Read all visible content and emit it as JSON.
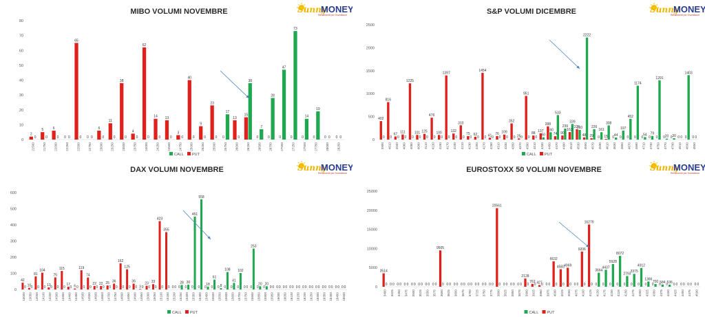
{
  "colors": {
    "call": "#1fa84f",
    "put": "#e0201b",
    "arrow": "#4a7fc1"
  },
  "logo": {
    "sunny": "Sunny",
    "money": "MONEY",
    "tagline": "Rendimenti per l'investitore",
    "icon": "sun-icon"
  },
  "legend": {
    "call": "CALL",
    "put": "PUT"
  },
  "chart_data": [
    {
      "type": "bar",
      "title": "MIBO VOLUMI NOVEMBRE",
      "ylim": [
        0,
        80
      ],
      "yticks": [
        0,
        10,
        20,
        30,
        40,
        50,
        60,
        70,
        80
      ],
      "categories": [
        "21500",
        "21750",
        "22000",
        "22250",
        "22500",
        "22750",
        "23000",
        "23250",
        "23500",
        "23750",
        "24000",
        "24250",
        "24500",
        "24750",
        "25000",
        "25250",
        "25500",
        "25750",
        "26000",
        "26250",
        "26500",
        "26750",
        "27000",
        "27250",
        "27500",
        "27750",
        "28000",
        "28250"
      ],
      "series": [
        {
          "name": "CALL",
          "values": [
            0,
            0,
            0,
            0,
            0,
            0,
            0,
            0,
            0,
            0,
            0,
            0,
            0,
            0,
            0,
            0,
            0,
            17,
            0,
            38,
            7,
            28,
            47,
            73,
            14,
            19,
            0,
            0
          ]
        },
        {
          "name": "PUT",
          "values": [
            2,
            5,
            6,
            0,
            65,
            0,
            6,
            11,
            38,
            4,
            62,
            14,
            13,
            3,
            40,
            9,
            23,
            0,
            13,
            15,
            0,
            0,
            0,
            0,
            0,
            0,
            0,
            0
          ]
        }
      ],
      "grid": false,
      "legend": "bottom"
    },
    {
      "type": "bar",
      "title": "S&P VOLUMI DICEMBRE",
      "ylim": [
        0,
        2500
      ],
      "yticks": [
        0,
        500,
        1000,
        1500,
        2000,
        2500
      ],
      "categories": [
        "3900",
        "4010",
        "4040",
        "4060",
        "4080",
        "4090",
        "4110",
        "4130",
        "4150",
        "4170",
        "4190",
        "4210",
        "4230",
        "4250",
        "4270",
        "4290",
        "4310",
        "4330",
        "4350",
        "4370",
        "4390",
        "4410",
        "4430",
        "4450",
        "4470",
        "4490",
        "4510",
        "4530",
        "4550",
        "4570",
        "4590",
        "4610",
        "4630",
        "4650",
        "4670",
        "4690",
        "4710",
        "4730",
        "4750",
        "4770",
        "4790",
        "4810",
        "4830",
        "4850"
      ],
      "series": [
        {
          "name": "CALL",
          "values": [
            0,
            0,
            0,
            0,
            0,
            0,
            0,
            0,
            0,
            0,
            0,
            0,
            0,
            0,
            0,
            0,
            0,
            0,
            0,
            0,
            0,
            0,
            50,
            160,
            533,
            239,
            339,
            210,
            2222,
            226,
            161,
            308,
            44,
            197,
            452,
            1174,
            54,
            79,
            1291,
            20,
            30,
            0,
            1403,
            0
          ]
        },
        {
          "name": "PUT",
          "values": [
            402,
            816,
            67,
            111,
            1225,
            101,
            125,
            476,
            100,
            1397,
            132,
            310,
            75,
            62,
            1454,
            41,
            76,
            109,
            352,
            25,
            951,
            88,
            137,
            288,
            74,
            90,
            163,
            225,
            48,
            29,
            0,
            15,
            0,
            0,
            0,
            0,
            0,
            0,
            0,
            0,
            0,
            0,
            0,
            0
          ]
        }
      ],
      "grid": false,
      "legend": "bottom"
    },
    {
      "type": "bar",
      "title": "DAX VOLUMI NOVEMBRE",
      "ylim": [
        0,
        600
      ],
      "yticks": [
        0,
        100,
        200,
        300,
        400,
        500,
        600
      ],
      "categories": [
        "13000",
        "13050",
        "14000",
        "14100",
        "14200",
        "14300",
        "14350",
        "14400",
        "14450",
        "14500",
        "14550",
        "14600",
        "14650",
        "14700",
        "14750",
        "14800",
        "14850",
        "14900",
        "14950",
        "15000",
        "15050",
        "15100",
        "15150",
        "15200",
        "15250",
        "15300",
        "15350",
        "15400",
        "15450",
        "15500",
        "15550",
        "15600",
        "15650",
        "15700",
        "15750",
        "15800",
        "15850",
        "15900",
        "15950",
        "16000",
        "16050",
        "16100",
        "16150",
        "16200",
        "16250",
        "16300",
        "16350",
        "16400",
        "16450",
        "16500"
      ],
      "series": [
        {
          "name": "CALL",
          "values": [
            0,
            0,
            0,
            0,
            0,
            0,
            0,
            0,
            0,
            0,
            0,
            0,
            0,
            0,
            0,
            0,
            0,
            0,
            0,
            0,
            0,
            0,
            0,
            0,
            28,
            30,
            451,
            558,
            18,
            61,
            8,
            108,
            41,
            102,
            0,
            253,
            20,
            20,
            0,
            0,
            0,
            0,
            0,
            0,
            0,
            0,
            0,
            0,
            0,
            0
          ]
        },
        {
          "name": "PUT",
          "values": [
            42,
            10,
            81,
            104,
            13,
            75,
            115,
            17,
            6,
            119,
            74,
            22,
            22,
            25,
            36,
            162,
            125,
            36,
            3,
            23,
            33,
            423,
            355,
            0,
            0,
            0,
            0,
            0,
            0,
            0,
            0,
            0,
            0,
            0,
            0,
            0,
            0,
            0,
            0,
            0,
            0,
            0,
            0,
            0,
            0,
            0,
            0,
            0,
            0,
            0
          ]
        }
      ],
      "grid": false,
      "legend": "bottom"
    },
    {
      "type": "bar",
      "title": "EUROSTOXX 50 VOLUMI NOVEMBRE",
      "ylim": [
        0,
        25000
      ],
      "yticks": [
        0,
        5000,
        10000,
        15000,
        20000,
        25000
      ],
      "categories": [
        "3400",
        "3425",
        "3450",
        "3475",
        "3500",
        "3525",
        "3550",
        "3575",
        "3600",
        "3625",
        "3650",
        "3675",
        "3700",
        "3725",
        "3750",
        "3775",
        "3800",
        "3825",
        "3850",
        "3875",
        "3900",
        "3925",
        "3950",
        "3975",
        "4000",
        "4025",
        "4050",
        "4075",
        "4100",
        "4125",
        "4150",
        "4175",
        "4200",
        "4225",
        "4250",
        "4275",
        "4300",
        "4325",
        "4350",
        "4375",
        "4400",
        "4425",
        "4450",
        "4475",
        "4500"
      ],
      "series": [
        {
          "name": "CALL",
          "values": [
            0,
            0,
            0,
            0,
            0,
            0,
            0,
            0,
            0,
            0,
            0,
            0,
            0,
            0,
            0,
            0,
            0,
            0,
            0,
            0,
            0,
            0,
            0,
            0,
            0,
            0,
            0,
            0,
            0,
            0,
            3664,
            4437,
            5928,
            8072,
            2793,
            3375,
            4912,
            1366,
            700,
            584,
            536,
            0,
            0,
            0,
            0
          ]
        },
        {
          "name": "PUT",
          "values": [
            3514,
            0,
            0,
            0,
            0,
            0,
            0,
            0,
            9505,
            0,
            0,
            0,
            0,
            0,
            0,
            0,
            20561,
            0,
            0,
            0,
            2128,
            763,
            427,
            0,
            6632,
            4583,
            4969,
            0,
            9206,
            16279,
            0,
            0,
            0,
            0,
            0,
            0,
            0,
            0,
            0,
            0,
            0,
            0,
            0,
            0,
            0
          ]
        }
      ],
      "grid": false,
      "legend": "bottom"
    }
  ]
}
